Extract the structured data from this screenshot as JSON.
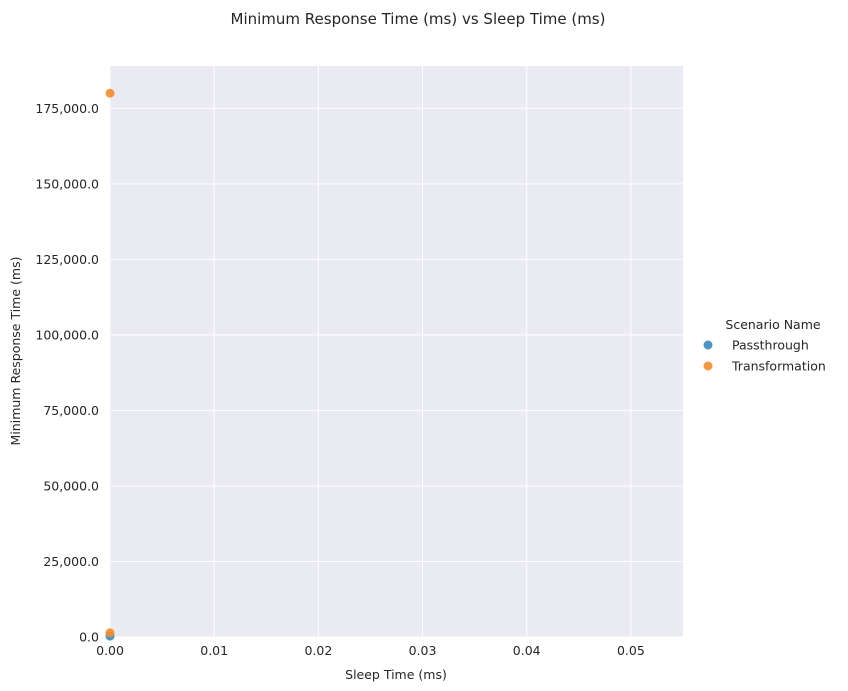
{
  "chart_data": {
    "type": "scatter",
    "title": "Minimum Response Time (ms) vs Sleep Time (ms)",
    "xlabel": "Sleep Time (ms)",
    "ylabel": "Minimum Response Time (ms)",
    "xlim": [
      0,
      0.055
    ],
    "ylim": [
      0,
      189000
    ],
    "xticks": [
      0.0,
      0.01,
      0.02,
      0.03,
      0.04,
      0.05
    ],
    "xtick_labels": [
      "0.00",
      "0.01",
      "0.02",
      "0.03",
      "0.04",
      "0.05"
    ],
    "yticks": [
      0,
      25000,
      50000,
      75000,
      100000,
      125000,
      150000,
      175000
    ],
    "ytick_labels": [
      "0.0",
      "25,000.0",
      "50,000.0",
      "75,000.0",
      "100,000.0",
      "125,000.0",
      "150,000.0",
      "175,000.0"
    ],
    "grid": true,
    "legend": {
      "title": "Scenario Name",
      "placement": "right"
    },
    "series": [
      {
        "name": "Passthrough",
        "color": "#3a88c0",
        "points": [
          {
            "x": 0,
            "y": 300
          }
        ]
      },
      {
        "name": "Transformation",
        "color": "#f58b2a",
        "points": [
          {
            "x": 0,
            "y": 180000
          },
          {
            "x": 0,
            "y": 1400
          }
        ]
      }
    ]
  }
}
